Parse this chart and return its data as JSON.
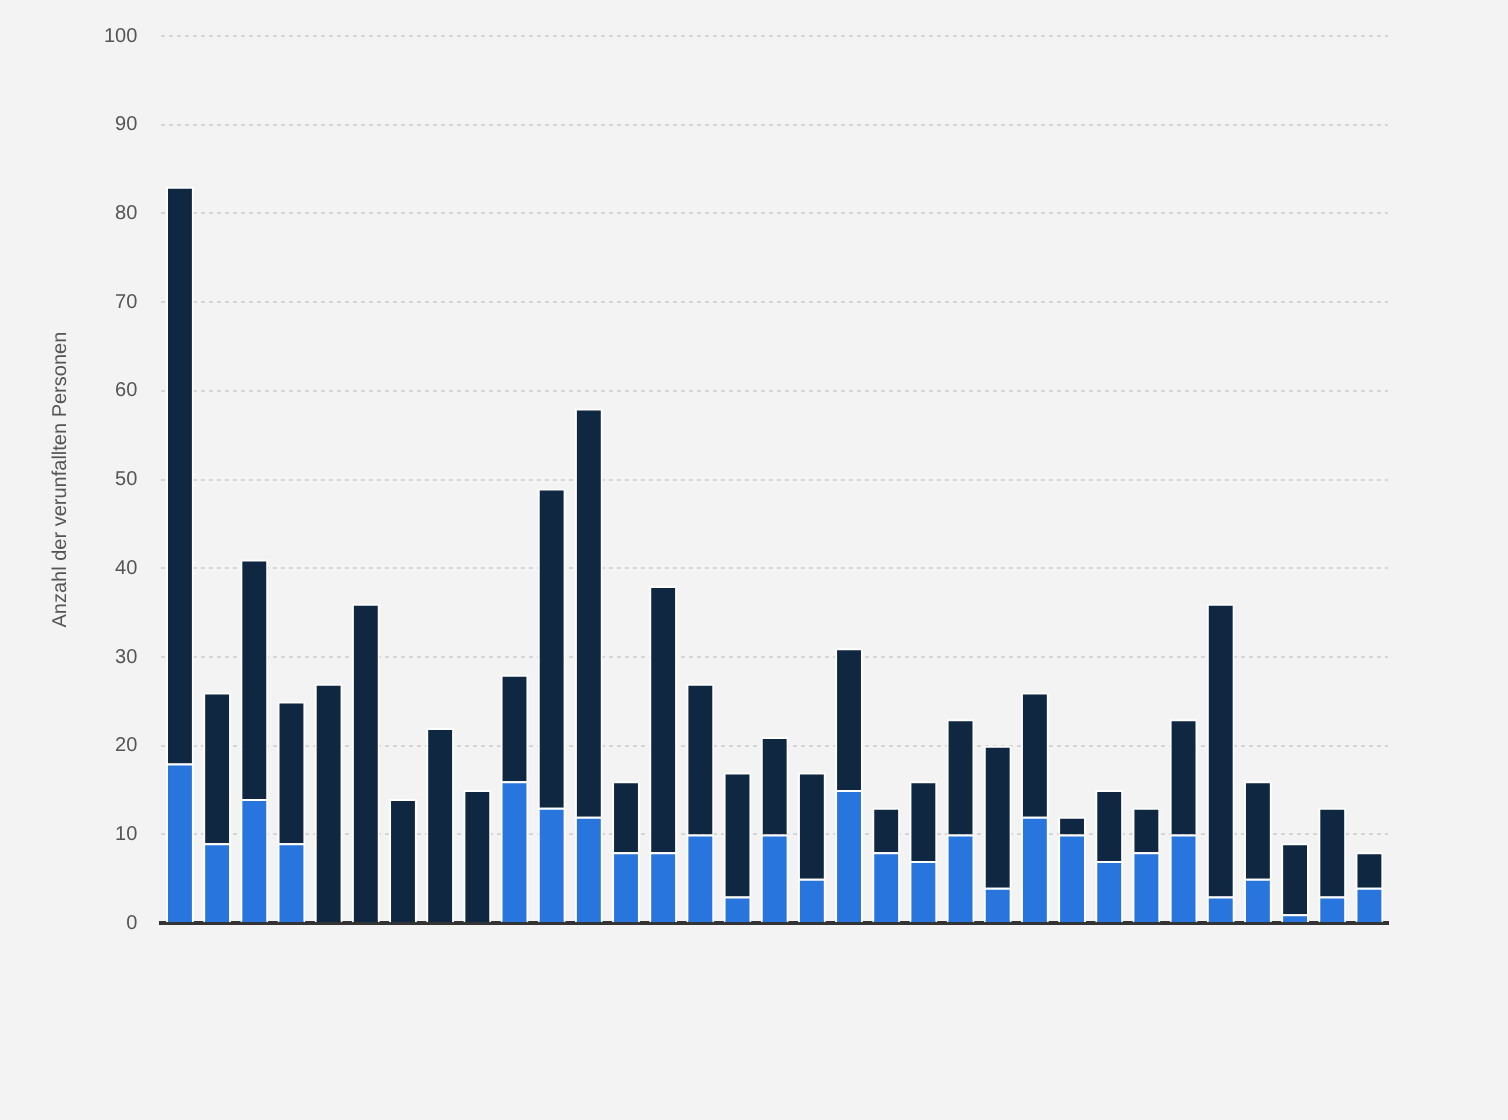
{
  "chart_data": {
    "type": "bar",
    "stacked": true,
    "ylabel": "Anzahl der verunfallten Personen",
    "categories": [
      null,
      null,
      null,
      null,
      null,
      null,
      null,
      null,
      null,
      null,
      null,
      null,
      null,
      null,
      null,
      null,
      null,
      null,
      null,
      null,
      null,
      null,
      null,
      null,
      null,
      null,
      null,
      null,
      null,
      null,
      null,
      null,
      null
    ],
    "series": [
      {
        "color": "#2876dd",
        "values": [
          18,
          9,
          14,
          9,
          0,
          0,
          0,
          0,
          0,
          16,
          13,
          12,
          8,
          8,
          10,
          3,
          10,
          5,
          15,
          8,
          7,
          10,
          4,
          12,
          10,
          7,
          8,
          10,
          3,
          5,
          1,
          3,
          4
        ]
      },
      {
        "color": "#0f2740",
        "values": [
          65,
          17,
          27,
          16,
          27,
          36,
          14,
          22,
          15,
          12,
          36,
          46,
          8,
          30,
          17,
          14,
          11,
          12,
          16,
          5,
          9,
          13,
          16,
          14,
          2,
          8,
          5,
          13,
          33,
          11,
          8,
          10,
          4
        ]
      }
    ],
    "ylim": [
      0,
      100
    ],
    "yticks": [
      0,
      10,
      20,
      30,
      40,
      50,
      60,
      70,
      80,
      90,
      100
    ],
    "grid": "y",
    "legend": false
  }
}
